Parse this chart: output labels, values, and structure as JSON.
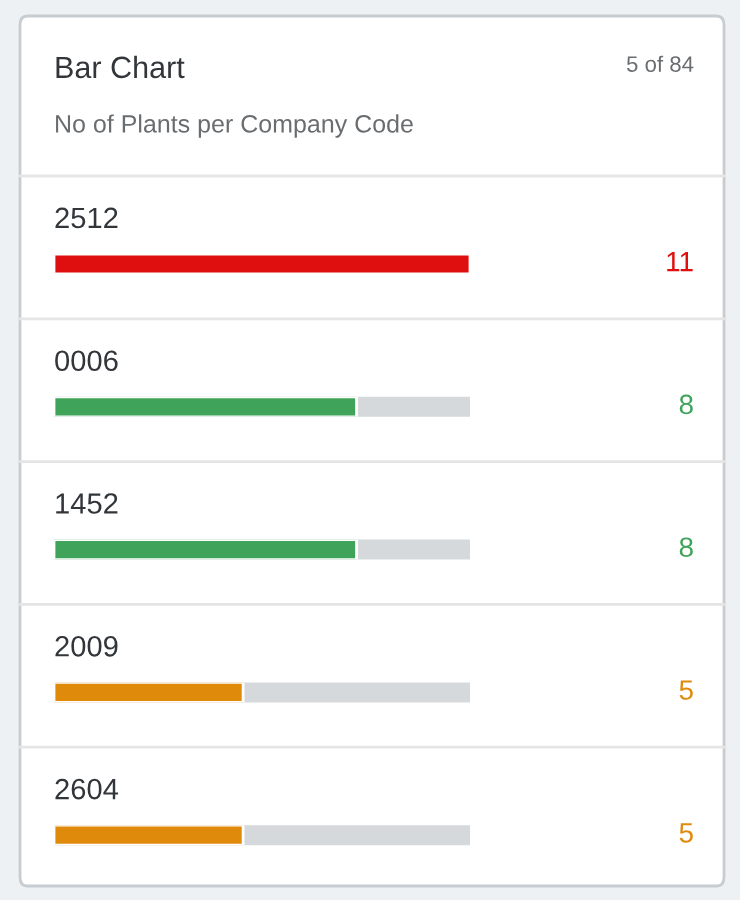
{
  "chart_data": {
    "type": "bar",
    "orientation": "horizontal",
    "title": "Bar Chart",
    "subtitle": "No of Plants per Company Code",
    "annotations": [
      "5 of 84"
    ],
    "categories": [
      "2512",
      "0006",
      "1452",
      "2009",
      "2604"
    ],
    "values": [
      11,
      8,
      8,
      5,
      5
    ],
    "colors": [
      "#e00f0f",
      "#3fa35a",
      "#3fa35a",
      "#e08a0c",
      "#e08a0c"
    ],
    "xlim": [
      0,
      11
    ],
    "tick_labels": false,
    "data_labels": true
  }
}
